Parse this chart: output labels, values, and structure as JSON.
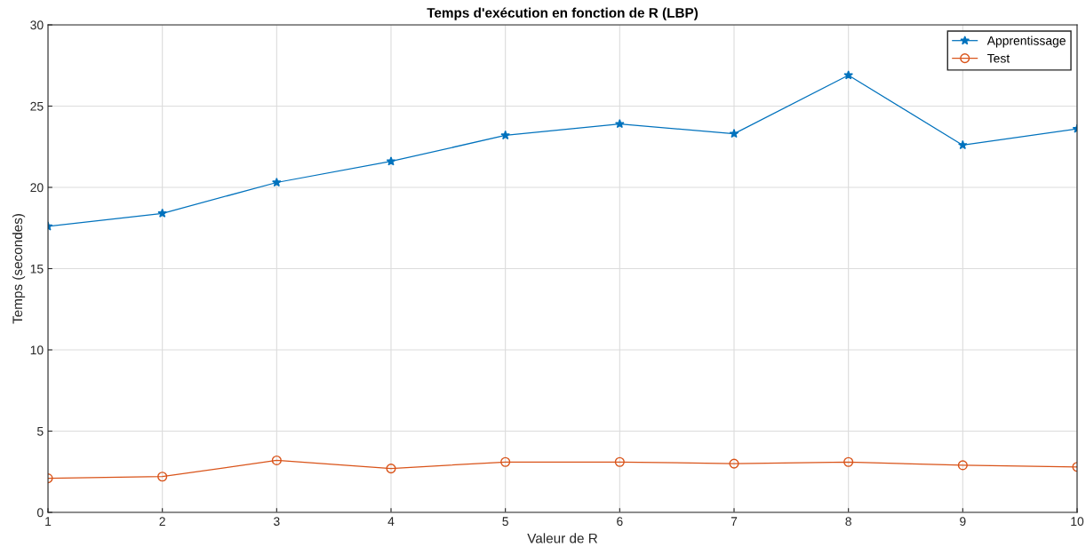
{
  "chart_data": {
    "type": "line",
    "title": "Temps d'exécution en fonction de R (LBP)",
    "xlabel": "Valeur de R",
    "ylabel": "Temps (secondes)",
    "x": [
      1,
      2,
      3,
      4,
      5,
      6,
      7,
      8,
      9,
      10
    ],
    "series": [
      {
        "name": "Apprentissage",
        "color": "#0072bd",
        "marker": "star",
        "values": [
          17.6,
          18.4,
          20.3,
          21.6,
          23.2,
          23.9,
          23.3,
          26.9,
          22.6,
          23.6
        ]
      },
      {
        "name": "Test",
        "color": "#d95319",
        "marker": "circle",
        "values": [
          2.1,
          2.2,
          3.2,
          2.7,
          3.1,
          3.1,
          3.0,
          3.1,
          2.9,
          2.8
        ]
      }
    ],
    "xlim": [
      1,
      10
    ],
    "xticks": [
      1,
      2,
      3,
      4,
      5,
      6,
      7,
      8,
      9,
      10
    ],
    "ylim": [
      0,
      30
    ],
    "yticks": [
      0,
      5,
      10,
      15,
      20,
      25,
      30
    ],
    "grid": true,
    "legend": "top right",
    "line_style": "solid"
  }
}
